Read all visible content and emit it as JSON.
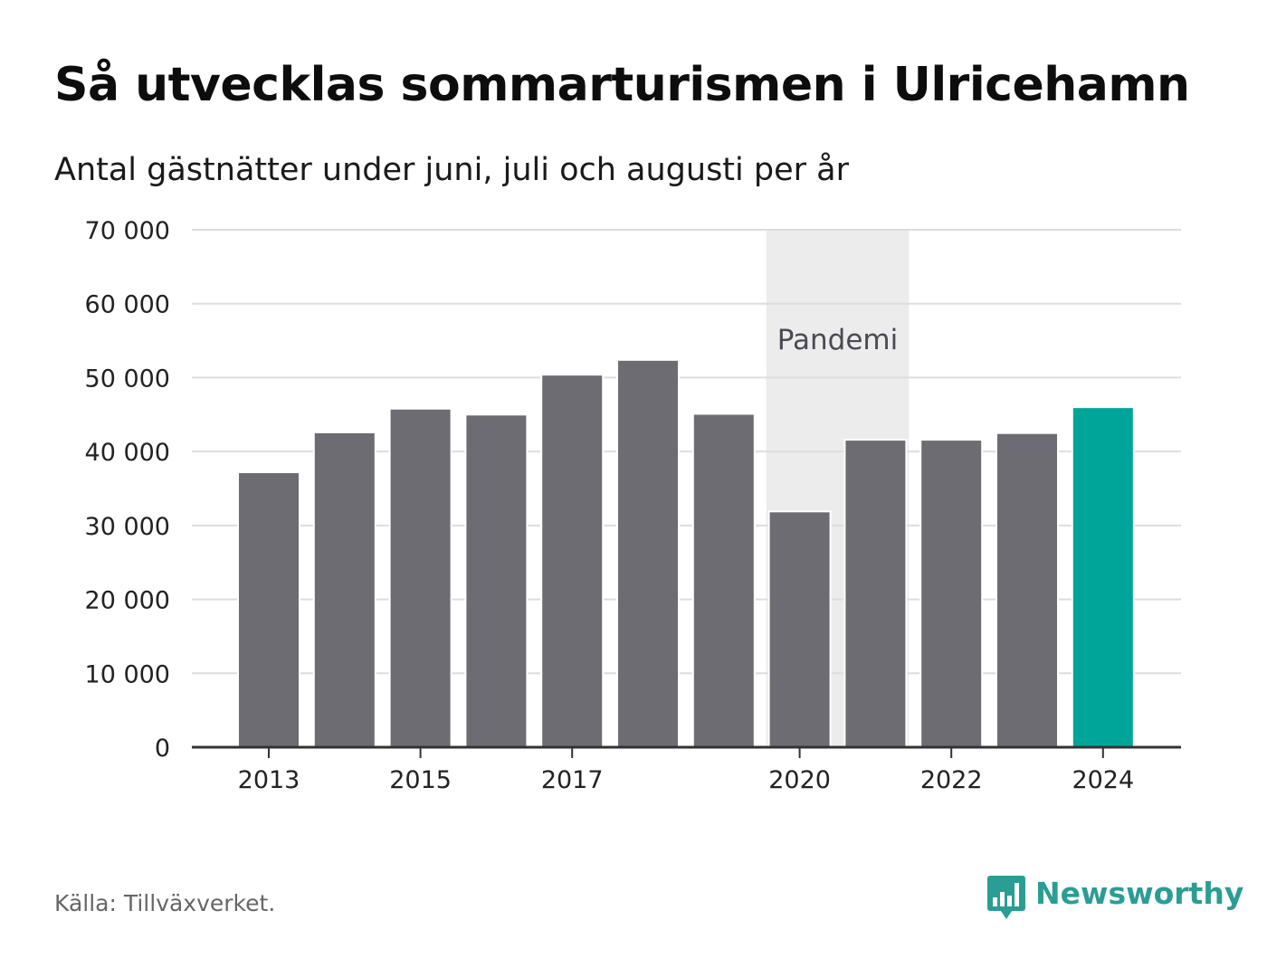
{
  "header": {
    "title": "Så utvecklas sommarturismen i Ulricehamn",
    "subtitle": "Antal gästnätter under juni, juli och augusti per år"
  },
  "footer": {
    "source": "Källa: Tillväxverket.",
    "brand": "Newsworthy"
  },
  "colors": {
    "bar": "#6d6c72",
    "highlight": "#00a59a",
    "band": "#ececec",
    "grid": "#dddddd",
    "axis": "#333333",
    "brand": "#2a9d94"
  },
  "chart_data": {
    "type": "bar",
    "title": "Så utvecklas sommarturismen i Ulricehamn",
    "subtitle": "Antal gästnätter under juni, juli och augusti per år",
    "categories": [
      "2013",
      "2014",
      "2015",
      "2016",
      "2017",
      "2018",
      "2019",
      "2020",
      "2021",
      "2022",
      "2023",
      "2024"
    ],
    "values": [
      37200,
      42600,
      45800,
      45000,
      50400,
      52400,
      45100,
      31900,
      41600,
      41600,
      42500,
      46000
    ],
    "highlight_category": "2024",
    "x_tick_labels": [
      "2013",
      "2015",
      "2017",
      "2020",
      "2022",
      "2024"
    ],
    "y_ticks": [
      0,
      10000,
      20000,
      30000,
      40000,
      50000,
      60000,
      70000
    ],
    "y_tick_labels": [
      "0",
      "10 000",
      "20 000",
      "30 000",
      "40 000",
      "50 000",
      "60 000",
      "70 000"
    ],
    "ylim": [
      0,
      70000
    ],
    "xlabel": "",
    "ylabel": "",
    "grid": true,
    "annotation": {
      "label": "Pandemi",
      "from": "2020",
      "to": "2021"
    }
  }
}
